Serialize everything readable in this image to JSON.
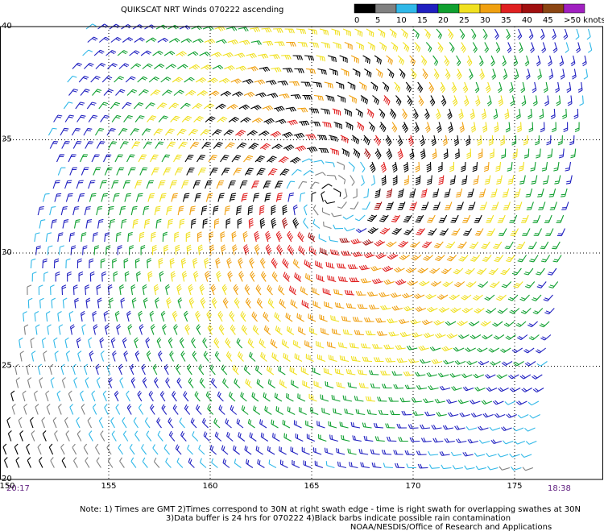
{
  "title": "QUIKSCAT NRT Winds 070222 ascending",
  "legend": {
    "colors": [
      "#000000",
      "#808080",
      "#30b8e8",
      "#2020c0",
      "#10a030",
      "#f0e020",
      "#f0a010",
      "#e02020",
      "#a01010",
      "#8b4513",
      "#a020c0"
    ],
    "labels": [
      "0",
      "5",
      "10",
      "15",
      "20",
      "25",
      "30",
      "35",
      "40",
      "45",
      ">50 knots"
    ]
  },
  "lat_ticks": [
    40,
    35,
    30,
    25,
    20
  ],
  "lon_ticks": [
    150,
    155,
    160,
    165,
    170,
    175
  ],
  "time_left": "20:17",
  "time_right": "18:38",
  "notes": [
    "Note: 1) Times are GMT 2)Times correspond to 30N at right swath edge - time is right swath for overlapping swathes at 30N",
    "3)Data buffer is 24 hrs for 070222 4)Black barbs indicate possible rain contamination",
    "NOAA/NESDIS/Office of Research and Applications"
  ]
}
